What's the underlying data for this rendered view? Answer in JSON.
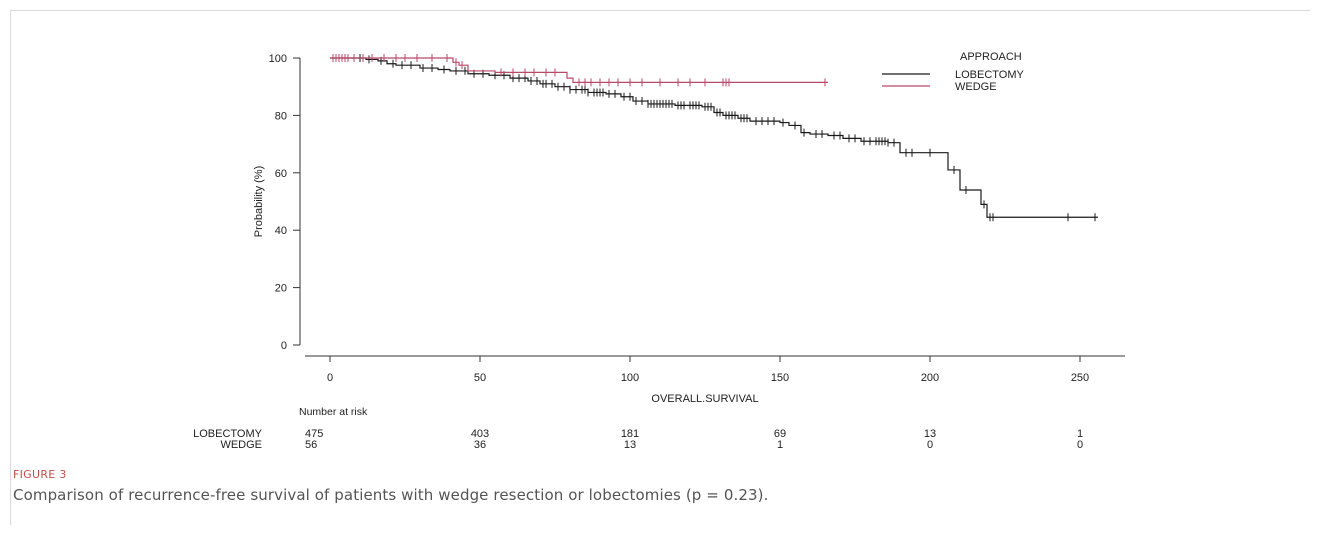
{
  "figure": {
    "label": "FIGURE 3",
    "caption": "Comparison of recurrence-free survival of patients with wedge resection or lobectomies (p = 0.23)."
  },
  "chart_data": {
    "type": "line",
    "subtype": "kaplan-meier step",
    "xlabel": "OVERALL.SURVIVAL",
    "ylabel": "Probability (%)",
    "xlim": [
      0,
      260
    ],
    "ylim": [
      0,
      100
    ],
    "xticks": [
      0,
      50,
      100,
      150,
      200,
      250
    ],
    "yticks": [
      0,
      20,
      40,
      60,
      80,
      100
    ],
    "legend": {
      "title": "APPROACH",
      "position": "top-right"
    },
    "series": [
      {
        "name": "LOBECTOMY",
        "color": "#1a1a1a",
        "x": [
          0,
          5,
          12,
          16,
          19,
          22,
          30,
          36,
          40,
          46,
          53,
          60,
          66,
          70,
          75,
          80,
          86,
          92,
          97,
          101,
          106,
          115,
          124,
          128,
          131,
          136,
          140,
          150,
          153,
          157,
          160,
          166,
          171,
          177,
          186,
          190,
          197,
          206,
          210,
          217,
          219,
          256
        ],
        "y": [
          100,
          100,
          99.5,
          99,
          98,
          97.5,
          96.5,
          96,
          95.5,
          94.5,
          94,
          93,
          92,
          91,
          90,
          89,
          88,
          87.5,
          86.5,
          85,
          84,
          83.5,
          83,
          81,
          80,
          79,
          78,
          77.5,
          76.5,
          74,
          73.5,
          73,
          72,
          71,
          70.5,
          67,
          67,
          61,
          54,
          49,
          44.5,
          44.5
        ],
        "censor_x": [
          2,
          4,
          6,
          8,
          10,
          13,
          17,
          21,
          24,
          27,
          31,
          34,
          38,
          42,
          45,
          48,
          51,
          55,
          58,
          61,
          63,
          65,
          67,
          69,
          71,
          72,
          74,
          76,
          78,
          80,
          82,
          84,
          85,
          86,
          88,
          89,
          90,
          91,
          93,
          95,
          98,
          100,
          102,
          104,
          106,
          107,
          108,
          109,
          110,
          111,
          112,
          113,
          114,
          116,
          117,
          118,
          120,
          121,
          122,
          123,
          125,
          126,
          127,
          129,
          130,
          132,
          133,
          134,
          135,
          137,
          138,
          139,
          142,
          144,
          146,
          148,
          151,
          155,
          158,
          162,
          164,
          168,
          170,
          173,
          175,
          178,
          180,
          182,
          183,
          184,
          185,
          186,
          188,
          192,
          194,
          200,
          208,
          212,
          218,
          220,
          221,
          246,
          255
        ]
      },
      {
        "name": "WEDGE",
        "color": "#b84a68",
        "x": [
          0,
          38,
          41,
          43,
          46,
          55,
          79,
          81,
          166
        ],
        "y": [
          100,
          100,
          98.5,
          97.5,
          95.5,
          95,
          93,
          91.5,
          91.5
        ],
        "censor_x": [
          1,
          2,
          3,
          4,
          5,
          6,
          8,
          11,
          14,
          18,
          22,
          25,
          29,
          34,
          39,
          42,
          44,
          57,
          61,
          65,
          68,
          72,
          75,
          83,
          85,
          87,
          90,
          93,
          96,
          100,
          104,
          110,
          116,
          120,
          125,
          131,
          132,
          133,
          165
        ]
      }
    ],
    "risk_table": {
      "title": "Number at risk",
      "times": [
        0,
        50,
        100,
        150,
        200,
        250
      ],
      "rows": [
        {
          "name": "LOBECTOMY",
          "values": [
            "475",
            "403",
            "181",
            "69",
            "13",
            "1"
          ]
        },
        {
          "name": "WEDGE",
          "values": [
            "56",
            "36",
            "13",
            "1",
            "0",
            "0"
          ]
        }
      ]
    }
  }
}
